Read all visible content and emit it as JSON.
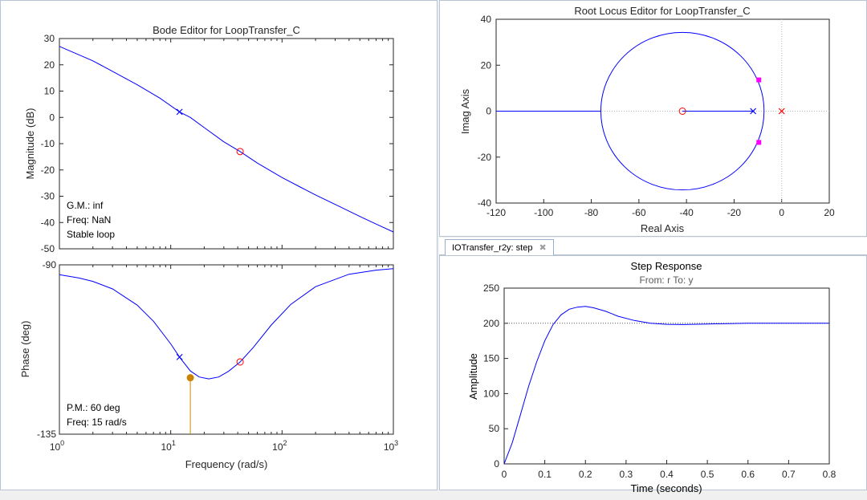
{
  "bode": {
    "title": "Bode Editor for LoopTransfer_C",
    "mag_ylabel": "Magnitude (dB)",
    "phase_ylabel": "Phase (deg)",
    "xlabel": "Frequency (rad/s)",
    "mag_info": [
      "G.M.: inf",
      "Freq: NaN",
      "Stable loop"
    ],
    "phase_info": [
      "P.M.: 60 deg",
      "Freq: 15 rad/s"
    ]
  },
  "rlocus": {
    "title": "Root Locus Editor for LoopTransfer_C",
    "xlabel": "Real Axis",
    "ylabel": "Imag Axis"
  },
  "step": {
    "tab_label": "IOTransfer_r2y: step",
    "close_glyph": "✖",
    "title": "Step Response",
    "subtitle": "From: r  To: y",
    "xlabel": "Time (seconds)",
    "ylabel": "Amplitude"
  },
  "colors": {
    "curve": "#0000ff",
    "zero_marker": "#ff0000",
    "closed_loop_pole": "#ff00ff",
    "margin_marker": "#cc8400",
    "axis": "#262626",
    "grid_line": "#bbbbbb"
  },
  "chart_data": [
    {
      "type": "line",
      "title": "Bode Editor for LoopTransfer_C",
      "subplot": "magnitude",
      "xlabel": "Frequency (rad/s)",
      "ylabel": "Magnitude (dB)",
      "xscale": "log",
      "xlim": [
        1,
        1000
      ],
      "ylim": [
        -50,
        30
      ],
      "xticks": [
        1,
        10,
        100,
        1000
      ],
      "xtick_labels": [
        [
          "10",
          "0"
        ],
        [
          "10",
          "1"
        ],
        [
          "10",
          "2"
        ],
        [
          "10",
          "3"
        ]
      ],
      "yticks": [
        30,
        20,
        10,
        0,
        -10,
        -20,
        -30,
        -40,
        -50
      ],
      "x": [
        1,
        2,
        3,
        5,
        8,
        12,
        15,
        20,
        30,
        42,
        60,
        100,
        150,
        200,
        300,
        500,
        700,
        1000
      ],
      "y": [
        27,
        21.5,
        17.5,
        12.4,
        7.3,
        2.1,
        0,
        -3.9,
        -9.3,
        -13.0,
        -17.4,
        -22.9,
        -26.8,
        -29.5,
        -33.1,
        -37.7,
        -40.6,
        -43.6
      ],
      "markers": [
        {
          "kind": "pole",
          "x": 12,
          "y": 2.1
        },
        {
          "kind": "zero",
          "x": 42,
          "y": -13.0
        }
      ]
    },
    {
      "type": "line",
      "subplot": "phase",
      "xlabel": "Frequency (rad/s)",
      "ylabel": "Phase (deg)",
      "xscale": "log",
      "xlim": [
        1,
        1000
      ],
      "ylim": [
        -135,
        -90
      ],
      "yticks": [
        -90,
        -135
      ],
      "x": [
        1,
        1.5,
        2,
        3,
        5,
        7,
        10,
        12,
        15,
        18,
        22,
        27,
        33,
        42,
        55,
        80,
        120,
        200,
        400,
        700,
        1000
      ],
      "y": [
        -92.6,
        -93.5,
        -94.4,
        -96.4,
        -100.7,
        -105.0,
        -111.0,
        -114.5,
        -118.2,
        -119.8,
        -120.3,
        -119.8,
        -118.3,
        -115.8,
        -112.0,
        -106.0,
        -100.5,
        -95.8,
        -92.5,
        -91.4,
        -91.0
      ],
      "markers": [
        {
          "kind": "pole",
          "x": 12,
          "y": -114.5
        },
        {
          "kind": "zero",
          "x": 42,
          "y": -115.8
        },
        {
          "kind": "phase_margin",
          "x": 15,
          "y": -120,
          "label": "P.M.: 60 deg"
        }
      ]
    },
    {
      "type": "line",
      "title": "Root Locus Editor for LoopTransfer_C",
      "xlabel": "Real Axis",
      "ylabel": "Imag Axis",
      "xlim": [
        -120,
        20
      ],
      "ylim": [
        -40,
        40
      ],
      "xticks": [
        -120,
        -100,
        -80,
        -60,
        -40,
        -20,
        0,
        20
      ],
      "yticks": [
        40,
        20,
        0,
        -20,
        -40
      ],
      "locus_circle": {
        "center_real": -41.7,
        "radius": 34.3
      },
      "locus_real_axis": [
        [
          -120,
          -75.9
        ],
        [
          -41.7,
          -12
        ]
      ],
      "open_loop_poles": [
        [
          0,
          0
        ],
        [
          -12,
          0
        ]
      ],
      "open_loop_zeros": [
        [
          -41.7,
          0
        ]
      ],
      "closed_loop_poles": [
        [
          -9.6,
          13.6
        ],
        [
          -9.6,
          -13.6
        ]
      ]
    },
    {
      "type": "line",
      "title": "Step Response",
      "subtitle": "From: r  To: y",
      "xlabel": "Time (seconds)",
      "ylabel": "Amplitude",
      "xlim": [
        0,
        0.8
      ],
      "ylim": [
        0,
        250
      ],
      "xticks": [
        0,
        0.1,
        0.2,
        0.3,
        0.4,
        0.5,
        0.6,
        0.7,
        0.8
      ],
      "yticks": [
        250,
        200,
        150,
        100,
        50,
        0
      ],
      "steady_state": 200,
      "x": [
        0,
        0.02,
        0.04,
        0.06,
        0.08,
        0.1,
        0.12,
        0.14,
        0.16,
        0.18,
        0.2,
        0.22,
        0.25,
        0.28,
        0.32,
        0.36,
        0.4,
        0.44,
        0.5,
        0.55,
        0.6,
        0.7,
        0.8
      ],
      "y": [
        0,
        30,
        70,
        110,
        145,
        175,
        198,
        212,
        220,
        223,
        224,
        222,
        217,
        210,
        204,
        200,
        198.5,
        198.2,
        199,
        199.6,
        200,
        200,
        200
      ]
    }
  ]
}
